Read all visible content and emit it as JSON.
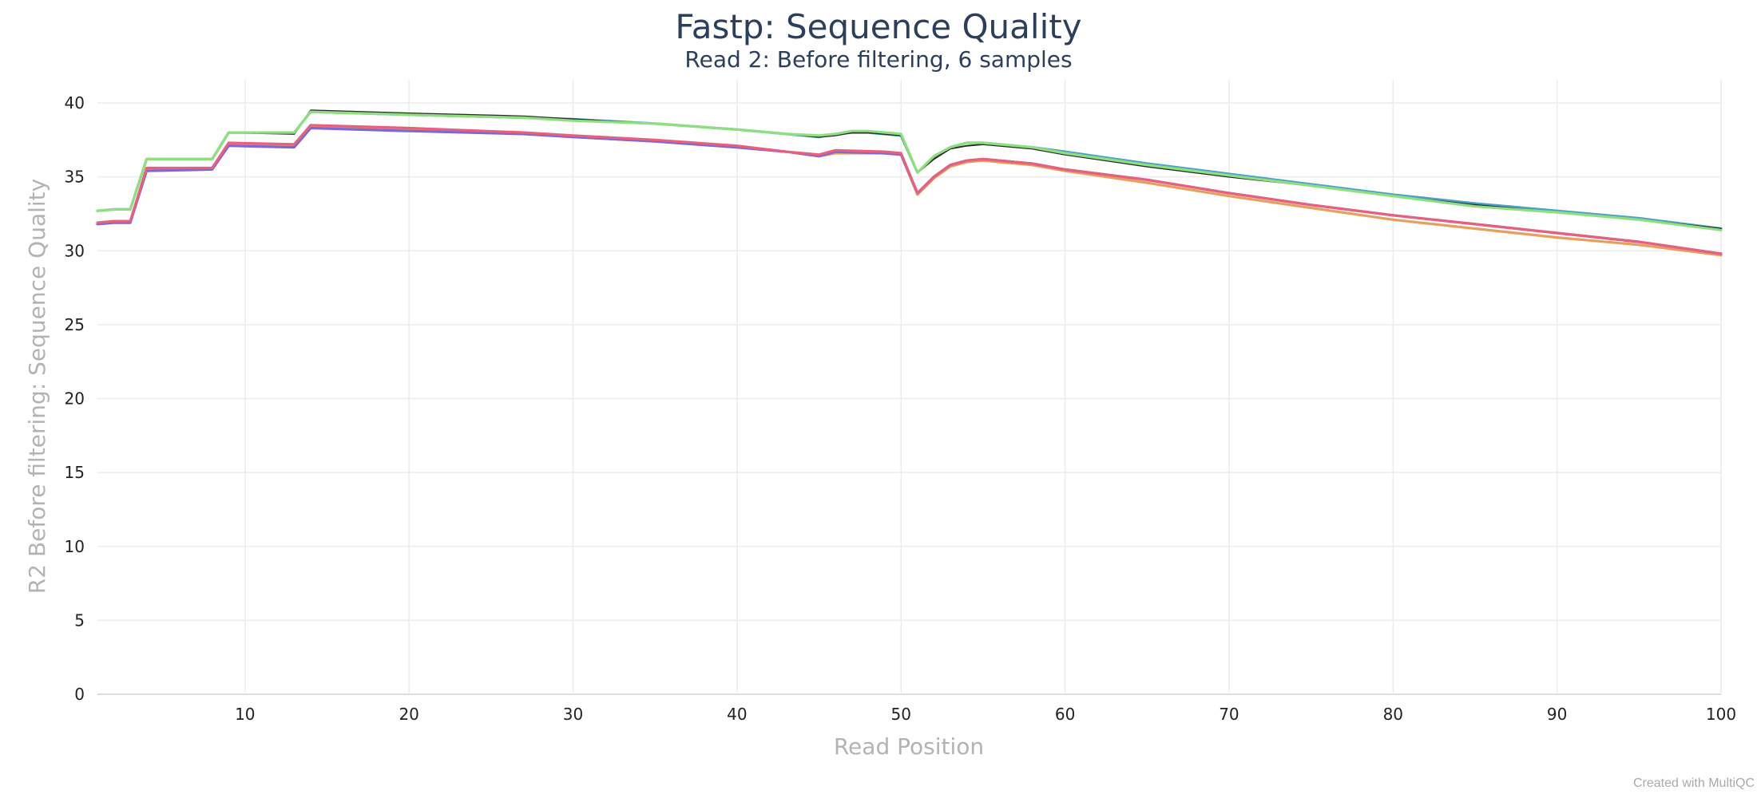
{
  "chart_data": {
    "type": "line",
    "title": "Fastp: Sequence Quality",
    "subtitle": "Read 2: Before filtering, 6 samples",
    "xlabel": "Read Position",
    "ylabel": "R2 Before filtering: Sequence Quality",
    "xlim": [
      1,
      100
    ],
    "ylim": [
      0,
      41
    ],
    "x_ticks": [
      10,
      20,
      30,
      40,
      50,
      60,
      70,
      80,
      90,
      100
    ],
    "y_ticks": [
      0,
      5,
      10,
      15,
      20,
      25,
      30,
      35,
      40
    ],
    "grid": true,
    "legend": "none",
    "credit": "Created with MultiQC",
    "series": [
      {
        "color": "#e6a05c",
        "points": [
          [
            1,
            31.9
          ],
          [
            2,
            32.0
          ],
          [
            3,
            32.0
          ],
          [
            4,
            35.5
          ],
          [
            8,
            35.6
          ],
          [
            9,
            37.2
          ],
          [
            13,
            37.1
          ],
          [
            14,
            38.4
          ],
          [
            20,
            38.2
          ],
          [
            27,
            37.9
          ],
          [
            30,
            37.7
          ],
          [
            35,
            37.4
          ],
          [
            40,
            37.0
          ],
          [
            43,
            36.7
          ],
          [
            45,
            36.4
          ],
          [
            46,
            36.6
          ],
          [
            49,
            36.6
          ],
          [
            50,
            36.5
          ],
          [
            51,
            33.8
          ],
          [
            52,
            34.9
          ],
          [
            53,
            35.7
          ],
          [
            54,
            36.0
          ],
          [
            55,
            36.1
          ],
          [
            56,
            36.0
          ],
          [
            58,
            35.8
          ],
          [
            60,
            35.4
          ],
          [
            65,
            34.6
          ],
          [
            70,
            33.7
          ],
          [
            75,
            32.9
          ],
          [
            80,
            32.1
          ],
          [
            85,
            31.5
          ],
          [
            90,
            30.9
          ],
          [
            95,
            30.4
          ],
          [
            100,
            29.7
          ]
        ]
      },
      {
        "color": "#7b68d8",
        "points": [
          [
            1,
            31.8
          ],
          [
            2,
            31.9
          ],
          [
            3,
            31.9
          ],
          [
            4,
            35.4
          ],
          [
            8,
            35.5
          ],
          [
            9,
            37.1
          ],
          [
            13,
            37.0
          ],
          [
            14,
            38.3
          ],
          [
            20,
            38.1
          ],
          [
            27,
            37.9
          ],
          [
            30,
            37.7
          ],
          [
            35,
            37.4
          ],
          [
            40,
            37.0
          ],
          [
            43,
            36.7
          ],
          [
            45,
            36.4
          ],
          [
            46,
            36.7
          ],
          [
            49,
            36.6
          ],
          [
            50,
            36.5
          ],
          [
            51,
            33.9
          ],
          [
            52,
            35.0
          ],
          [
            53,
            35.8
          ],
          [
            54,
            36.1
          ],
          [
            55,
            36.2
          ],
          [
            56,
            36.1
          ],
          [
            58,
            35.9
          ],
          [
            60,
            35.5
          ],
          [
            65,
            34.8
          ],
          [
            70,
            33.9
          ],
          [
            75,
            33.1
          ],
          [
            80,
            32.4
          ],
          [
            85,
            31.8
          ],
          [
            90,
            31.2
          ],
          [
            95,
            30.6
          ],
          [
            100,
            29.8
          ]
        ]
      },
      {
        "color": "#e8607e",
        "points": [
          [
            1,
            31.9
          ],
          [
            2,
            32.0
          ],
          [
            3,
            32.0
          ],
          [
            4,
            35.6
          ],
          [
            8,
            35.6
          ],
          [
            9,
            37.3
          ],
          [
            13,
            37.2
          ],
          [
            14,
            38.5
          ],
          [
            20,
            38.3
          ],
          [
            27,
            38.0
          ],
          [
            30,
            37.8
          ],
          [
            35,
            37.5
          ],
          [
            40,
            37.1
          ],
          [
            43,
            36.7
          ],
          [
            45,
            36.5
          ],
          [
            46,
            36.8
          ],
          [
            49,
            36.7
          ],
          [
            50,
            36.6
          ],
          [
            51,
            33.9
          ],
          [
            52,
            35.0
          ],
          [
            53,
            35.8
          ],
          [
            54,
            36.1
          ],
          [
            55,
            36.2
          ],
          [
            56,
            36.1
          ],
          [
            58,
            35.9
          ],
          [
            60,
            35.5
          ],
          [
            65,
            34.8
          ],
          [
            70,
            33.9
          ],
          [
            75,
            33.1
          ],
          [
            80,
            32.4
          ],
          [
            85,
            31.8
          ],
          [
            90,
            31.2
          ],
          [
            95,
            30.6
          ],
          [
            100,
            29.8
          ]
        ]
      },
      {
        "color": "#4aa3c7",
        "points": [
          [
            1,
            32.7
          ],
          [
            2,
            32.8
          ],
          [
            3,
            32.8
          ],
          [
            4,
            36.2
          ],
          [
            8,
            36.2
          ],
          [
            9,
            38.0
          ],
          [
            13,
            38.0
          ],
          [
            14,
            39.4
          ],
          [
            20,
            39.2
          ],
          [
            27,
            39.0
          ],
          [
            30,
            38.9
          ],
          [
            35,
            38.6
          ],
          [
            40,
            38.2
          ],
          [
            43,
            37.9
          ],
          [
            45,
            37.7
          ],
          [
            46,
            37.9
          ],
          [
            47,
            38.0
          ],
          [
            48,
            38.0
          ],
          [
            50,
            37.8
          ],
          [
            51,
            35.3
          ],
          [
            52,
            36.3
          ],
          [
            53,
            37.0
          ],
          [
            54,
            37.3
          ],
          [
            55,
            37.3
          ],
          [
            58,
            37.0
          ],
          [
            60,
            36.7
          ],
          [
            65,
            35.9
          ],
          [
            70,
            35.2
          ],
          [
            75,
            34.5
          ],
          [
            80,
            33.8
          ],
          [
            85,
            33.2
          ],
          [
            90,
            32.7
          ],
          [
            95,
            32.2
          ],
          [
            100,
            31.5
          ]
        ]
      },
      {
        "color": "#2b2b2b",
        "points": [
          [
            1,
            32.7
          ],
          [
            2,
            32.8
          ],
          [
            3,
            32.8
          ],
          [
            4,
            36.2
          ],
          [
            8,
            36.2
          ],
          [
            9,
            38.0
          ],
          [
            13,
            37.9
          ],
          [
            14,
            39.5
          ],
          [
            20,
            39.3
          ],
          [
            27,
            39.1
          ],
          [
            30,
            38.9
          ],
          [
            35,
            38.6
          ],
          [
            40,
            38.2
          ],
          [
            43,
            37.9
          ],
          [
            45,
            37.7
          ],
          [
            46,
            37.8
          ],
          [
            47,
            38.0
          ],
          [
            48,
            38.0
          ],
          [
            50,
            37.8
          ],
          [
            51,
            35.3
          ],
          [
            52,
            36.2
          ],
          [
            53,
            36.9
          ],
          [
            54,
            37.1
          ],
          [
            55,
            37.2
          ],
          [
            58,
            36.9
          ],
          [
            60,
            36.5
          ],
          [
            65,
            35.7
          ],
          [
            70,
            35.0
          ],
          [
            75,
            34.4
          ],
          [
            80,
            33.7
          ],
          [
            85,
            33.1
          ],
          [
            90,
            32.6
          ],
          [
            95,
            32.1
          ],
          [
            100,
            31.5
          ]
        ]
      },
      {
        "color": "#8ee07e",
        "points": [
          [
            1,
            32.7
          ],
          [
            2,
            32.8
          ],
          [
            3,
            32.8
          ],
          [
            4,
            36.2
          ],
          [
            8,
            36.2
          ],
          [
            9,
            38.0
          ],
          [
            13,
            38.0
          ],
          [
            14,
            39.4
          ],
          [
            20,
            39.2
          ],
          [
            27,
            39.0
          ],
          [
            30,
            38.8
          ],
          [
            35,
            38.6
          ],
          [
            40,
            38.2
          ],
          [
            43,
            37.9
          ],
          [
            45,
            37.8
          ],
          [
            46,
            37.9
          ],
          [
            47,
            38.1
          ],
          [
            48,
            38.1
          ],
          [
            50,
            37.9
          ],
          [
            51,
            35.3
          ],
          [
            52,
            36.4
          ],
          [
            53,
            37.0
          ],
          [
            54,
            37.3
          ],
          [
            55,
            37.3
          ],
          [
            58,
            37.0
          ],
          [
            60,
            36.6
          ],
          [
            65,
            35.8
          ],
          [
            70,
            35.1
          ],
          [
            75,
            34.4
          ],
          [
            80,
            33.7
          ],
          [
            85,
            33.0
          ],
          [
            90,
            32.6
          ],
          [
            95,
            32.1
          ],
          [
            100,
            31.4
          ]
        ]
      }
    ]
  }
}
